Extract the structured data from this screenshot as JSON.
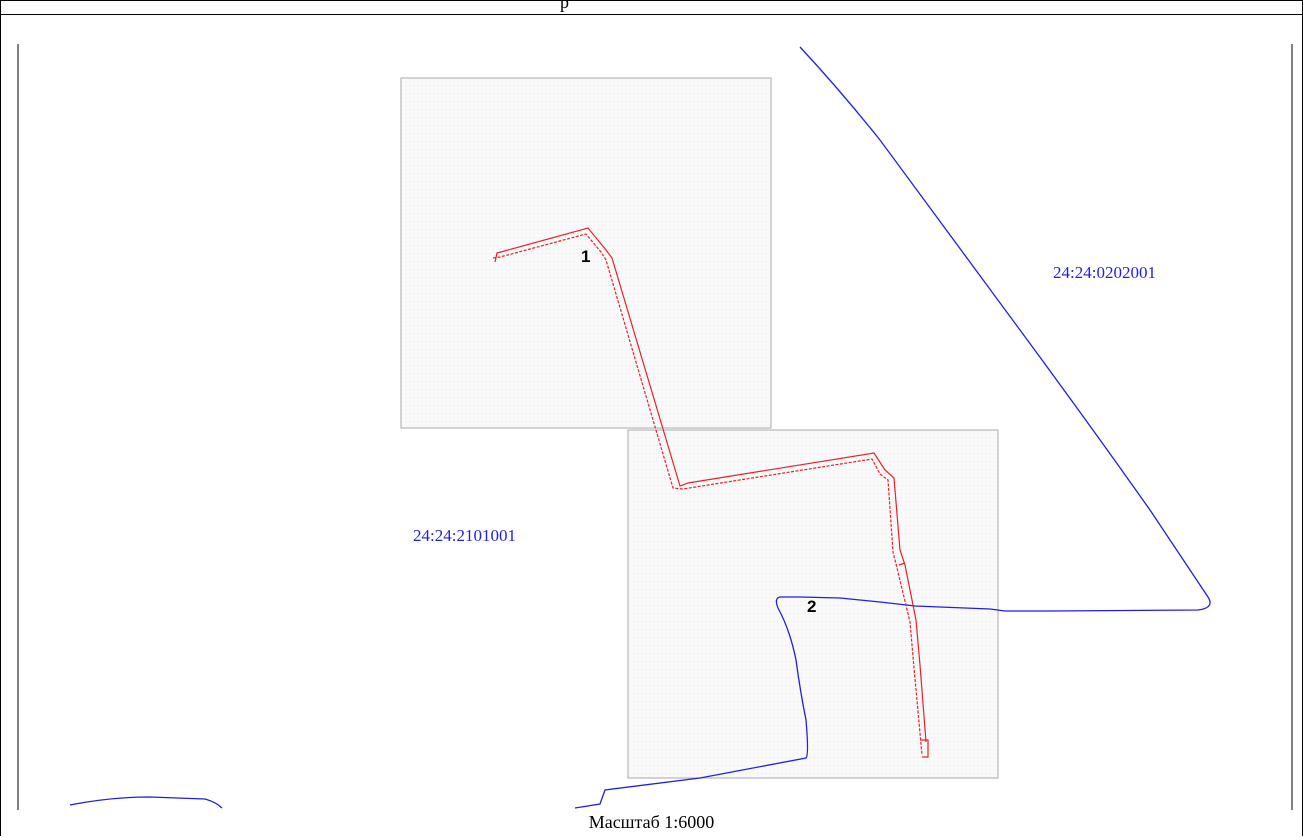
{
  "header": {
    "fragment": "р"
  },
  "map": {
    "quarter_labels": [
      {
        "id": "q-0202001",
        "text": "24:24:0202001"
      },
      {
        "id": "q-2101001",
        "text": "24:24:2101001"
      }
    ],
    "sheet_labels": [
      {
        "id": "sheet-1",
        "text": "1"
      },
      {
        "id": "sheet-2",
        "text": "2"
      }
    ],
    "colors": {
      "boundary": "#1f1fe6",
      "quarter_label": "#1f1fe6",
      "route": "#e8202a",
      "sheet_border": "#b8b8b8",
      "sheet_fill": "#f7f7f7",
      "frame": "#000000"
    }
  },
  "footer": {
    "scale": "Масштаб 1:6000"
  }
}
